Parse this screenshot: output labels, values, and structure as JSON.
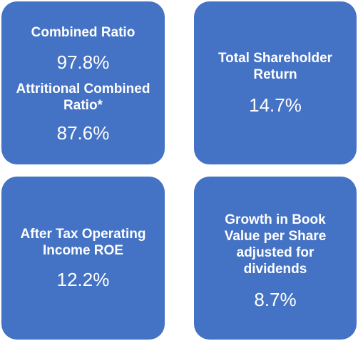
{
  "tiles": [
    {
      "metrics": [
        {
          "label": "Combined Ratio",
          "value": "97.8%"
        },
        {
          "label": "Attritional Combined Ratio*",
          "value": "87.6%"
        }
      ]
    },
    {
      "metrics": [
        {
          "label": "Total Shareholder Return",
          "value": "14.7%"
        }
      ]
    },
    {
      "metrics": [
        {
          "label": "After Tax Operating Income ROE",
          "value": "12.2%"
        }
      ]
    },
    {
      "metrics": [
        {
          "label": "Growth in Book Value per Share adjusted for dividends",
          "value": "8.7%"
        }
      ]
    }
  ],
  "colors": {
    "tile_background": "#4472c4",
    "text": "#ffffff"
  }
}
